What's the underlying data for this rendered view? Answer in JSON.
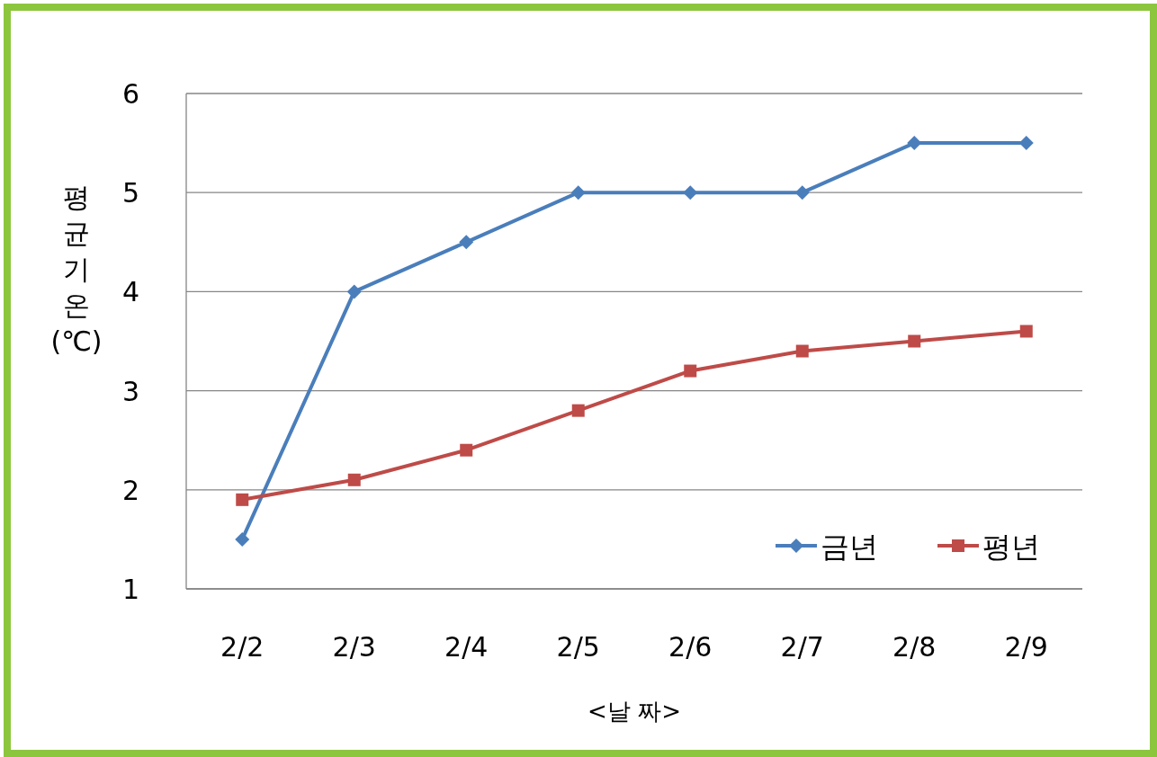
{
  "chart_data": {
    "type": "line",
    "xlabel": "<날 짜>",
    "ylabel": "평균기온(℃)",
    "categories": [
      "2/2",
      "2/3",
      "2/4",
      "2/5",
      "2/6",
      "2/7",
      "2/8",
      "2/9"
    ],
    "series": [
      {
        "name": "금년",
        "color": "#4a7ebb",
        "marker": "diamond",
        "values": [
          1.5,
          4,
          4.5,
          5,
          5,
          5,
          5.5,
          5.5
        ]
      },
      {
        "name": "평년",
        "color": "#be4b48",
        "marker": "square",
        "values": [
          1.9,
          2.1,
          2.4,
          2.8,
          3.2,
          3.4,
          3.5,
          3.6
        ]
      }
    ],
    "ylim": [
      1,
      6
    ],
    "yticks": [
      1,
      2,
      3,
      4,
      5,
      6
    ],
    "grid": "y",
    "legend": "bottom right",
    "line_style": "solid"
  }
}
